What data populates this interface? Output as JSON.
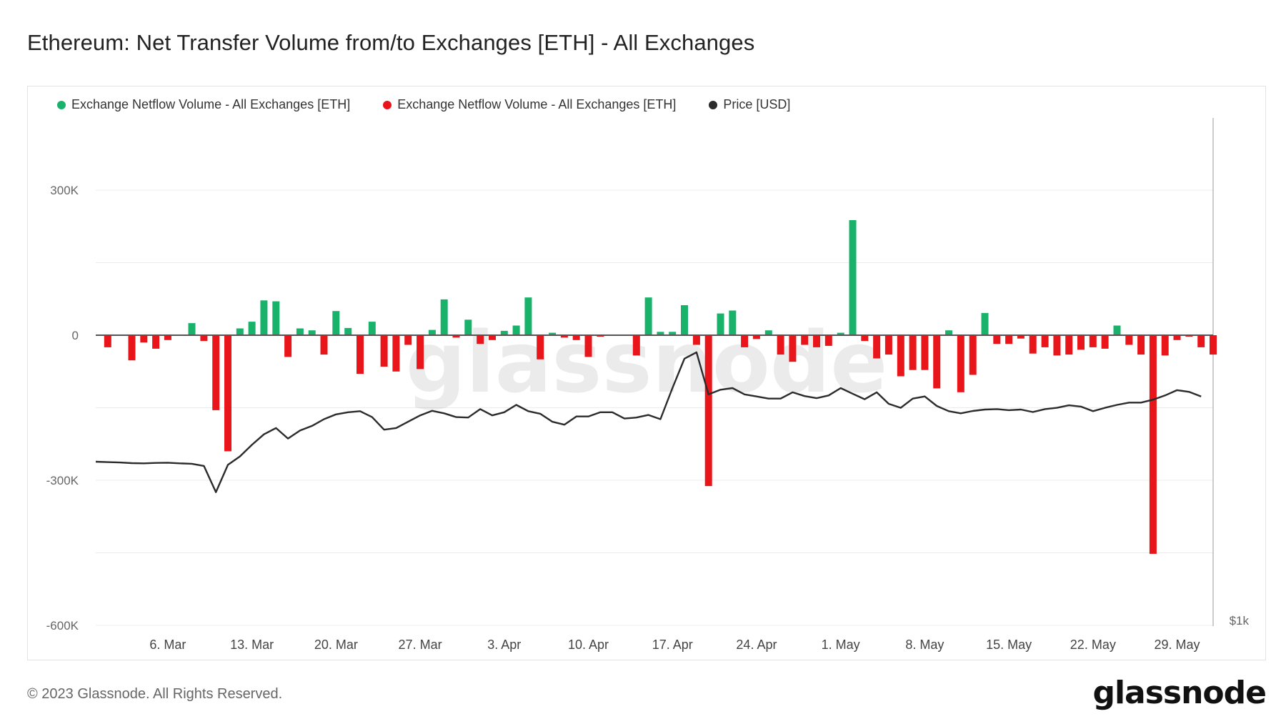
{
  "title": "Ethereum: Net Transfer Volume from/to Exchanges [ETH] - All Exchanges",
  "footer": "© 2023 Glassnode. All Rights Reserved.",
  "brand": "glassnode",
  "watermark": "glassnode",
  "colors": {
    "inflow": "#18b26b",
    "outflow": "#e8161b",
    "price": "#2b2b2b"
  },
  "legend": [
    {
      "label": "Exchange Netflow Volume - All Exchanges [ETH]",
      "color": "#18b26b"
    },
    {
      "label": "Exchange Netflow Volume - All Exchanges [ETH]",
      "color": "#e8161b"
    },
    {
      "label": "Price [USD]",
      "color": "#2b2b2b"
    }
  ],
  "chart_data": {
    "type": "bar",
    "y_ticks": [
      {
        "value": 300000,
        "label": "300K"
      },
      {
        "value": 0,
        "label": "0"
      },
      {
        "value": -300000,
        "label": "-300K"
      },
      {
        "value": -600000,
        "label": "-600K"
      }
    ],
    "y_range": [
      -600000,
      450000
    ],
    "y2_label": "$1k",
    "x_ticks": [
      "6. Mar",
      "13. Mar",
      "20. Mar",
      "27. Mar",
      "3. Apr",
      "10. Apr",
      "17. Apr",
      "24. Apr",
      "1. May",
      "8. May",
      "15. May",
      "22. May",
      "29. May"
    ],
    "x_tick_dates": [
      "2023-03-06",
      "2023-03-13",
      "2023-03-20",
      "2023-03-27",
      "2023-04-03",
      "2023-04-10",
      "2023-04-17",
      "2023-04-24",
      "2023-05-01",
      "2023-05-08",
      "2023-05-15",
      "2023-05-22",
      "2023-05-29"
    ],
    "x_range": [
      "2023-02-28",
      "2023-06-01"
    ],
    "start_date": "2023-03-01",
    "netflow": [
      -25000,
      0,
      -52000,
      -15000,
      -28000,
      -10000,
      0,
      25000,
      -12000,
      -155000,
      -240000,
      14000,
      28000,
      72000,
      70000,
      -45000,
      14000,
      10000,
      -40000,
      50000,
      15000,
      -80000,
      28000,
      -65000,
      -75000,
      -20000,
      -70000,
      11000,
      74000,
      -5000,
      32000,
      -18000,
      -10000,
      9000,
      20000,
      78000,
      -50000,
      5000,
      -5000,
      -10000,
      -45000,
      -3000,
      0,
      0,
      -42000,
      78000,
      7000,
      7000,
      62000,
      -20000,
      -312000,
      45000,
      51000,
      -25000,
      -8000,
      10000,
      -40000,
      -55000,
      -20000,
      -25000,
      -22000,
      5000,
      238000,
      -12000,
      -48000,
      -40000,
      -85000,
      -72000,
      -72000,
      -110000,
      10000,
      -118000,
      -82000,
      46000,
      -18000,
      -18000,
      -7000,
      -38000,
      -25000,
      -42000,
      -40000,
      -30000,
      -25000,
      -28000,
      20000,
      -20000,
      -40000,
      -452000,
      -42000,
      -10000,
      -3000,
      -25000,
      -40000
    ],
    "price": [
      1570,
      1568,
      1566,
      1563,
      1562,
      1564,
      1565,
      1562,
      1560,
      1550,
      1425,
      1555,
      1595,
      1650,
      1700,
      1730,
      1680,
      1718,
      1740,
      1772,
      1795,
      1805,
      1810,
      1782,
      1722,
      1730,
      1760,
      1790,
      1812,
      1800,
      1782,
      1780,
      1820,
      1790,
      1805,
      1840,
      1810,
      1798,
      1760,
      1746,
      1785,
      1785,
      1805,
      1805,
      1775,
      1780,
      1792,
      1772,
      1920,
      2060,
      2090,
      1890,
      1912,
      1920,
      1890,
      1880,
      1870,
      1870,
      1900,
      1882,
      1872,
      1885,
      1920,
      1893,
      1867,
      1900,
      1845,
      1826,
      1870,
      1880,
      1835,
      1810,
      1800,
      1811,
      1818,
      1820,
      1815,
      1818,
      1806,
      1820,
      1826,
      1838,
      1832,
      1810,
      1826,
      1840,
      1851,
      1851,
      1865,
      1885,
      1910,
      1902,
      1880
    ]
  }
}
